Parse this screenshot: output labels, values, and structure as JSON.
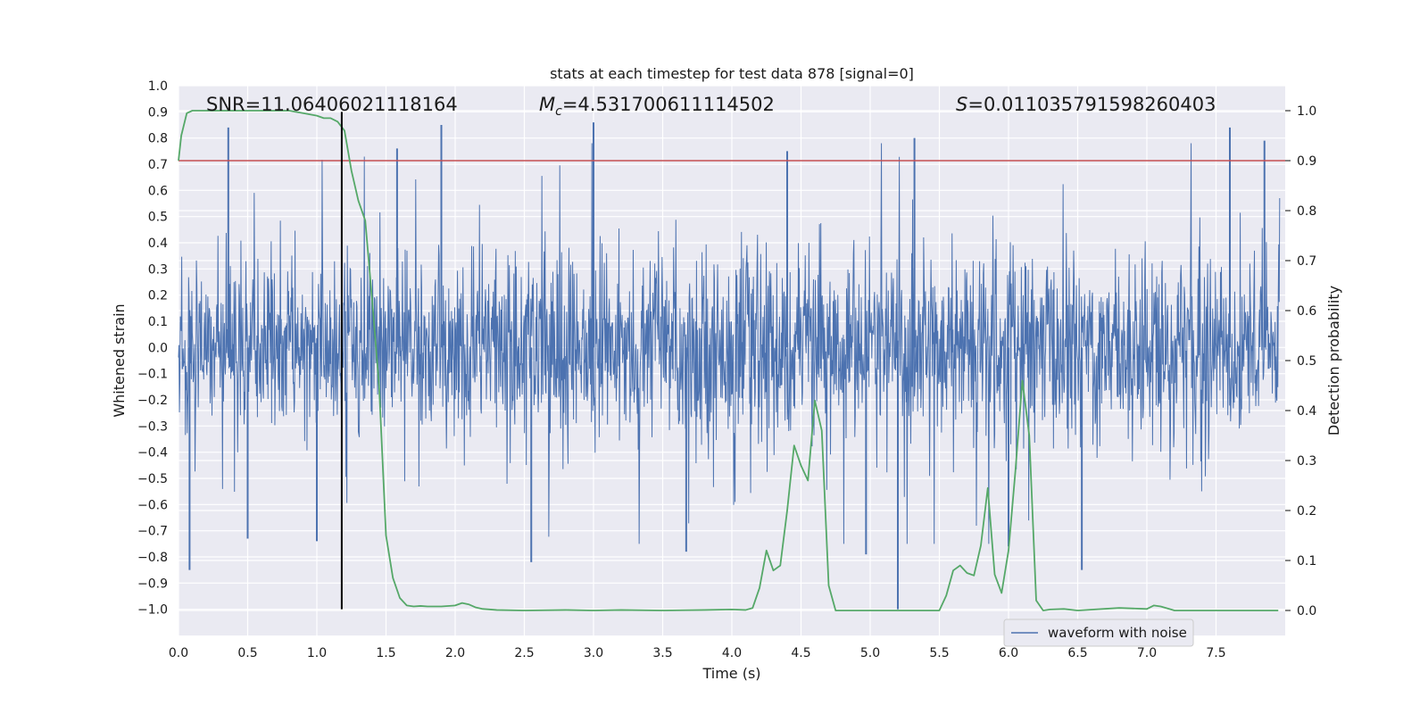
{
  "chart_data": {
    "type": "line",
    "title": "stats at each timestep for test data 878 [signal=0]",
    "xlabel": "Time (s)",
    "ylabel_left": "Whitened strain",
    "ylabel_right": "Detection probability",
    "xlim": [
      0.0,
      8.0
    ],
    "ylim_left": [
      -1.1,
      1.0
    ],
    "ylim_right": [
      -0.05,
      1.05
    ],
    "xticks": [
      "0.0",
      "0.5",
      "1.0",
      "1.5",
      "2.0",
      "2.5",
      "3.0",
      "3.5",
      "4.0",
      "4.5",
      "5.0",
      "5.5",
      "6.0",
      "6.5",
      "7.0",
      "7.5"
    ],
    "yticks_left": [
      "1.0",
      "0.9",
      "0.8",
      "0.7",
      "0.6",
      "0.5",
      "0.4",
      "0.3",
      "0.2",
      "0.1",
      "0.0",
      "−0.1",
      "−0.2",
      "−0.3",
      "−0.4",
      "−0.5",
      "−0.6",
      "−0.7",
      "−0.8",
      "−0.9",
      "−1.0"
    ],
    "yticks_right": [
      "1.0",
      "0.9",
      "0.8",
      "0.7",
      "0.6",
      "0.5",
      "0.4",
      "0.3",
      "0.2",
      "0.1",
      "0.0"
    ],
    "grid": true,
    "legend": {
      "entries": [
        "waveform with noise"
      ],
      "location": "lower-right"
    },
    "annotations": {
      "snr_prefix": "SNR=",
      "snr_value": "11.06406021118164",
      "mc_symbol": "M",
      "mc_subscript": "c",
      "mc_value": "=4.531700611114502",
      "s_symbol": "S",
      "s_value": "=0.011035791598260403"
    },
    "series": [
      {
        "name": "waveform with noise",
        "color": "#4c72b0",
        "axis": "left",
        "style": "dense noise signal, sample rate ~ 2048 Hz over 0 to 8 s",
        "typical_envelope": [
          -0.4,
          0.45
        ],
        "peaks": [
          {
            "x": 0.08,
            "y": -0.85
          },
          {
            "x": 0.36,
            "y": 0.84
          },
          {
            "x": 0.5,
            "y": -0.73
          },
          {
            "x": 1.0,
            "y": -0.74
          },
          {
            "x": 1.58,
            "y": 0.76
          },
          {
            "x": 1.9,
            "y": 0.85
          },
          {
            "x": 2.55,
            "y": -0.82
          },
          {
            "x": 3.0,
            "y": 0.86
          },
          {
            "x": 3.67,
            "y": -0.78
          },
          {
            "x": 4.4,
            "y": 0.75
          },
          {
            "x": 4.97,
            "y": -0.79
          },
          {
            "x": 5.2,
            "y": -1.0
          },
          {
            "x": 5.32,
            "y": 0.8
          },
          {
            "x": 6.0,
            "y": -0.76
          },
          {
            "x": 6.53,
            "y": -0.85
          },
          {
            "x": 7.6,
            "y": 0.84
          },
          {
            "x": 7.85,
            "y": 0.79
          }
        ]
      },
      {
        "name": "detection probability",
        "color": "#55a868",
        "axis": "right",
        "x": [
          0.0,
          0.02,
          0.06,
          0.1,
          0.2,
          0.3,
          0.4,
          0.5,
          0.6,
          0.7,
          0.8,
          0.9,
          1.0,
          1.05,
          1.1,
          1.15,
          1.2,
          1.25,
          1.3,
          1.35,
          1.4,
          1.45,
          1.5,
          1.55,
          1.6,
          1.65,
          1.7,
          1.75,
          1.8,
          1.9,
          2.0,
          2.05,
          2.1,
          2.15,
          2.2,
          2.3,
          2.5,
          2.8,
          3.0,
          3.2,
          3.5,
          3.8,
          4.0,
          4.1,
          4.15,
          4.2,
          4.25,
          4.3,
          4.35,
          4.4,
          4.45,
          4.5,
          4.55,
          4.6,
          4.65,
          4.7,
          4.75,
          4.8,
          4.85,
          4.9,
          5.0,
          5.2,
          5.5,
          5.55,
          5.6,
          5.65,
          5.7,
          5.75,
          5.8,
          5.85,
          5.9,
          5.95,
          6.0,
          6.05,
          6.1,
          6.15,
          6.2,
          6.25,
          6.3,
          6.4,
          6.5,
          6.8,
          7.0,
          7.05,
          7.1,
          7.2,
          7.4,
          7.6,
          7.8,
          7.95
        ],
        "y": [
          0.9,
          0.95,
          0.995,
          1.0,
          1.0,
          1.0,
          1.0,
          1.0,
          1.0,
          1.0,
          1.0,
          0.995,
          0.99,
          0.985,
          0.985,
          0.978,
          0.96,
          0.88,
          0.82,
          0.78,
          0.62,
          0.45,
          0.15,
          0.065,
          0.025,
          0.01,
          0.008,
          0.009,
          0.008,
          0.008,
          0.01,
          0.015,
          0.012,
          0.006,
          0.003,
          0.001,
          0.0,
          0.001,
          0.0,
          0.001,
          0.0,
          0.001,
          0.002,
          0.001,
          0.005,
          0.045,
          0.12,
          0.08,
          0.09,
          0.2,
          0.33,
          0.29,
          0.26,
          0.42,
          0.36,
          0.05,
          0.0,
          0.0,
          0.0,
          0.0,
          0.0,
          0.0,
          0.0,
          0.03,
          0.08,
          0.09,
          0.075,
          0.07,
          0.13,
          0.245,
          0.072,
          0.035,
          0.12,
          0.28,
          0.46,
          0.35,
          0.02,
          0.0,
          0.002,
          0.003,
          0.0,
          0.005,
          0.003,
          0.01,
          0.008,
          0.0,
          0.0,
          0.0,
          0.0,
          0.0
        ]
      },
      {
        "name": "threshold",
        "color": "#c44e52",
        "axis": "right",
        "value": 0.9
      },
      {
        "name": "marker",
        "color": "#000000",
        "axis": "left",
        "x": 1.18,
        "y_range": [
          -1.0,
          0.9
        ]
      }
    ]
  }
}
